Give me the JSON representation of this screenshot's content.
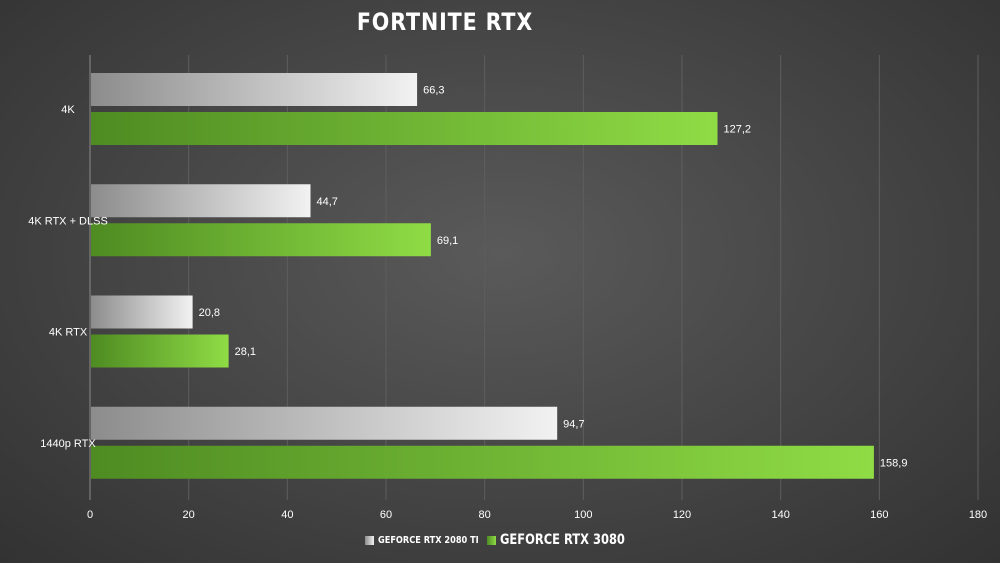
{
  "chart_data": {
    "type": "bar",
    "orientation": "horizontal",
    "title": "FORTNITE RTX",
    "categories": [
      "4K",
      "4K RTX + DLSS",
      "4K RTX",
      "1440p RTX"
    ],
    "series": [
      {
        "name": "GEFORCE RTX 2080 TI",
        "values": [
          66.3,
          44.7,
          20.8,
          94.7
        ],
        "labels": [
          "66,3",
          "44,7",
          "20,8",
          "94,7"
        ],
        "color_start": "#8c8c8c",
        "color_end": "#f2f2f2"
      },
      {
        "name": "GEFORCE RTX 3080",
        "values": [
          127.2,
          69.1,
          28.1,
          158.9
        ],
        "labels": [
          "127,2",
          "69,1",
          "28,1",
          "158,9"
        ],
        "color_start": "#4e8b22",
        "color_end": "#8fdc45"
      }
    ],
    "xlim": [
      0,
      180
    ],
    "xticks": [
      0,
      20,
      40,
      60,
      80,
      100,
      120,
      140,
      160,
      180
    ],
    "xlabel": "",
    "ylabel": "",
    "grid": "vertical",
    "legend_position": "bottom"
  }
}
